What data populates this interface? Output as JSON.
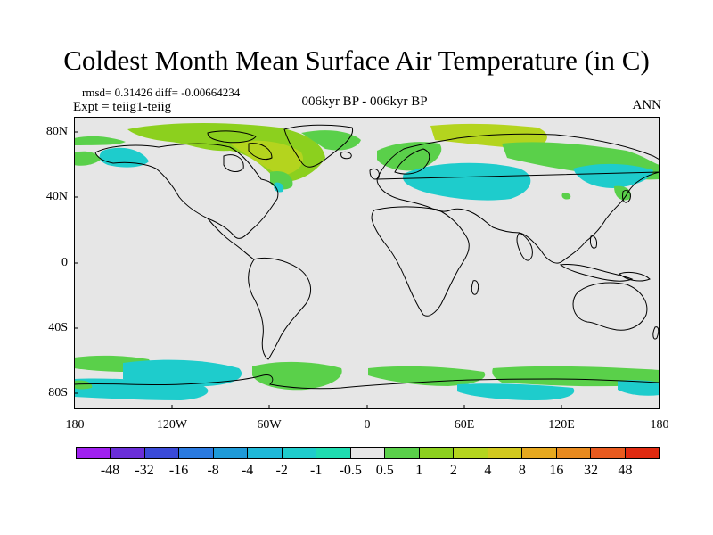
{
  "title": "Coldest Month Mean Surface Air Temperature (in C)",
  "stats_line": "rmsd= 0.31426 diff= -0.00664234",
  "experiment": "Expt = teiig1-teiig",
  "period": "006kyr BP - 006kyr BP",
  "season": "ANN",
  "lat_labels": [
    "80N",
    "40N",
    "0",
    "40S",
    "80S"
  ],
  "lon_labels": [
    "180",
    "120W",
    "60W",
    "0",
    "60E",
    "120E",
    "180"
  ],
  "colorbar": {
    "labels": [
      "-48",
      "-32",
      "-16",
      "-8",
      "-4",
      "-2",
      "-1",
      "-0.5",
      "0.5",
      "1",
      "2",
      "4",
      "8",
      "16",
      "32",
      "48"
    ],
    "colors": [
      "#a020f0",
      "#6a2ed8",
      "#3a4ad8",
      "#2a7ae0",
      "#1e9ad8",
      "#1eb8d8",
      "#1ecccc",
      "#1edcb0",
      "#e6e6e6",
      "#5ad04a",
      "#8cd01e",
      "#b4d41e",
      "#d2c81e",
      "#e6a81e",
      "#e88a1e",
      "#e85a1e",
      "#e02a10"
    ]
  },
  "colors": {
    "background_field": "#e6e6e6",
    "coastline": "#000000"
  }
}
